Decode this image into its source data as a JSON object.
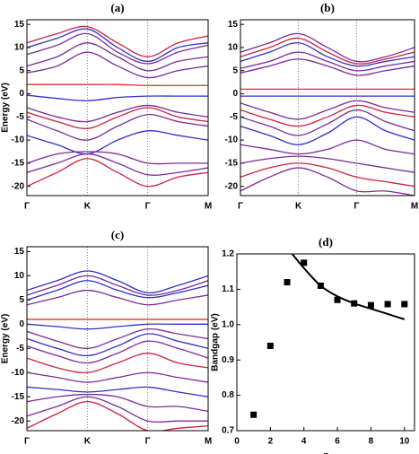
{
  "chart_data": [
    {
      "type": "line",
      "title": "(a)",
      "y_label": "Energy (eV)",
      "x": [
        0,
        0.5,
        1,
        1.5,
        2,
        2.5,
        3
      ],
      "xlim": [
        0,
        3
      ],
      "ylim": [
        -22,
        16
      ],
      "xticks": [
        {
          "value": 0,
          "label": "Γ"
        },
        {
          "value": 1,
          "label": "K"
        },
        {
          "value": 2,
          "label": "Γ"
        },
        {
          "value": 3,
          "label": "M"
        }
      ],
      "yticks": [
        -20,
        -15,
        -10,
        -5,
        0,
        5,
        10,
        15
      ],
      "series": [
        {
          "color": "#d02040",
          "values": [
            11,
            13,
            14.5,
            11,
            8,
            11,
            12.5
          ]
        },
        {
          "color": "#3030c8",
          "values": [
            10,
            12,
            14,
            10,
            7,
            10,
            11
          ]
        },
        {
          "color": "#7a2a9a",
          "values": [
            8.5,
            10.5,
            13,
            9,
            6.5,
            9,
            10.5
          ]
        },
        {
          "color": "#7a2a9a",
          "values": [
            6,
            8,
            11,
            8,
            5,
            7,
            8
          ]
        },
        {
          "color": "#7a2a9a",
          "values": [
            4.5,
            6,
            9,
            6,
            3.5,
            5,
            6
          ]
        },
        {
          "color": "#e03030",
          "values": [
            2,
            2,
            2,
            2,
            1.8,
            1.8,
            1.8
          ]
        },
        {
          "color": "#3030c8",
          "values": [
            -0.3,
            -1,
            -1.5,
            -0.8,
            -0.5,
            -0.5,
            -0.5
          ]
        },
        {
          "color": "#7a2a9a",
          "values": [
            -3,
            -5,
            -6,
            -4,
            -2.5,
            -4,
            -5
          ]
        },
        {
          "color": "#d02040",
          "values": [
            -4,
            -6,
            -7.5,
            -5,
            -3,
            -5,
            -6
          ]
        },
        {
          "color": "#7a2a9a",
          "values": [
            -5.5,
            -8,
            -10,
            -7,
            -4.5,
            -6,
            -7
          ]
        },
        {
          "color": "#3030c8",
          "values": [
            -9,
            -11,
            -13,
            -10,
            -8,
            -9,
            -10
          ]
        },
        {
          "color": "#7a2a9a",
          "values": [
            -15,
            -13,
            -12.5,
            -13,
            -15,
            -15,
            -15
          ]
        },
        {
          "color": "#7a2a9a",
          "values": [
            -17,
            -15,
            -13,
            -15,
            -17.5,
            -17,
            -16
          ]
        },
        {
          "color": "#d02040",
          "values": [
            -20,
            -17,
            -14,
            -17,
            -20,
            -18,
            -17
          ]
        }
      ]
    },
    {
      "type": "line",
      "title": "(b)",
      "x": [
        0,
        0.5,
        1,
        1.5,
        2,
        2.5,
        3
      ],
      "xlim": [
        0,
        3
      ],
      "ylim": [
        -22,
        16
      ],
      "xticks": [
        {
          "value": 0,
          "label": "Γ"
        },
        {
          "value": 1,
          "label": "K"
        },
        {
          "value": 2,
          "label": "Γ"
        },
        {
          "value": 3,
          "label": "M"
        }
      ],
      "yticks": [
        -20,
        -15,
        -10,
        -5,
        0,
        5,
        10,
        15
      ],
      "series": [
        {
          "color": "#7a2a9a",
          "values": [
            9,
            11,
            13,
            10,
            7,
            8,
            10
          ]
        },
        {
          "color": "#d02040",
          "values": [
            8,
            10,
            12,
            9,
            6.5,
            7.5,
            9
          ]
        },
        {
          "color": "#3030c8",
          "values": [
            7,
            9,
            11,
            8,
            6,
            7,
            8
          ]
        },
        {
          "color": "#7a2a9a",
          "values": [
            5.5,
            7,
            9,
            7,
            5,
            6,
            7
          ]
        },
        {
          "color": "#7a2a9a",
          "values": [
            4.5,
            6,
            7.5,
            6,
            4,
            5,
            6
          ]
        },
        {
          "color": "#e03030",
          "values": [
            1,
            1,
            1,
            1,
            1,
            1,
            1
          ]
        },
        {
          "color": "#3030c8",
          "values": [
            -0.5,
            -0.5,
            -0.5,
            -0.5,
            -0.5,
            -0.5,
            -0.5
          ]
        },
        {
          "color": "#7a2a9a",
          "values": [
            -2,
            -4,
            -5.5,
            -3.5,
            -1.5,
            -3,
            -4
          ]
        },
        {
          "color": "#d02040",
          "values": [
            -3.5,
            -5.5,
            -7,
            -5,
            -2.5,
            -4,
            -5
          ]
        },
        {
          "color": "#7a2a9a",
          "values": [
            -5,
            -7,
            -9,
            -6.5,
            -3.5,
            -6,
            -8
          ]
        },
        {
          "color": "#3030c8",
          "values": [
            -7,
            -9,
            -11,
            -8.5,
            -5,
            -8,
            -10
          ]
        },
        {
          "color": "#7a2a9a",
          "values": [
            -11,
            -12,
            -13,
            -12,
            -10,
            -12,
            -13
          ]
        },
        {
          "color": "#7a2a9a",
          "values": [
            -15,
            -14,
            -13.5,
            -14,
            -15,
            -16,
            -17
          ]
        },
        {
          "color": "#d02040",
          "values": [
            -18,
            -16,
            -15,
            -16,
            -18,
            -19,
            -20
          ]
        },
        {
          "color": "#7a2a9a",
          "values": [
            -21,
            -18,
            -16,
            -18,
            -21,
            -21,
            -22
          ]
        }
      ]
    },
    {
      "type": "line",
      "title": "(c)",
      "y_label": "Energy (eV)",
      "x": [
        0,
        0.5,
        1,
        1.5,
        2,
        2.5,
        3
      ],
      "xlim": [
        0,
        3
      ],
      "ylim": [
        -22,
        16
      ],
      "xticks": [
        {
          "value": 0,
          "label": "Γ"
        },
        {
          "value": 1,
          "label": "K"
        },
        {
          "value": 2,
          "label": "Γ"
        },
        {
          "value": 3,
          "label": "M"
        }
      ],
      "yticks": [
        -20,
        -15,
        -10,
        -5,
        0,
        5,
        10,
        15
      ],
      "series": [
        {
          "color": "#3030c8",
          "values": [
            7,
            9,
            11,
            9,
            6.5,
            8,
            10
          ]
        },
        {
          "color": "#7a2a9a",
          "values": [
            6,
            8,
            10,
            8,
            6,
            7,
            9
          ]
        },
        {
          "color": "#3030c8",
          "values": [
            5,
            7,
            9,
            7,
            5.5,
            6.5,
            8
          ]
        },
        {
          "color": "#7a2a9a",
          "values": [
            4,
            5.5,
            7,
            5.5,
            4,
            5,
            6
          ]
        },
        {
          "color": "#e03030",
          "values": [
            1,
            1,
            1,
            1,
            1,
            1,
            1
          ]
        },
        {
          "color": "#3030c8",
          "values": [
            0,
            -0.5,
            -1,
            -0.5,
            0,
            0,
            0
          ]
        },
        {
          "color": "#7a2a9a",
          "values": [
            -1.5,
            -3.5,
            -5,
            -3,
            -1,
            -2,
            -3
          ]
        },
        {
          "color": "#3030c8",
          "values": [
            -3,
            -5,
            -6.5,
            -4.5,
            -2,
            -3.5,
            -5
          ]
        },
        {
          "color": "#7a2a9a",
          "values": [
            -4.5,
            -6.5,
            -8,
            -6,
            -3.5,
            -5,
            -7
          ]
        },
        {
          "color": "#d02040",
          "values": [
            -7,
            -9,
            -10,
            -8,
            -6,
            -8,
            -9
          ]
        },
        {
          "color": "#7a2a9a",
          "values": [
            -10,
            -11,
            -12,
            -11,
            -10,
            -11,
            -12
          ]
        },
        {
          "color": "#3030c8",
          "values": [
            -13,
            -13.5,
            -14,
            -13.5,
            -13,
            -14,
            -15
          ]
        },
        {
          "color": "#7a2a9a",
          "values": [
            -16,
            -15,
            -14.5,
            -15,
            -17,
            -17,
            -18
          ]
        },
        {
          "color": "#7a2a9a",
          "values": [
            -19,
            -17,
            -15,
            -17,
            -20,
            -20,
            -20
          ]
        },
        {
          "color": "#d02040",
          "values": [
            -21.5,
            -18.5,
            -16,
            -18.5,
            -22,
            -21.5,
            -21
          ]
        }
      ]
    },
    {
      "type": "scatter",
      "title": "(d)",
      "y_label": "Bandgap (eV)",
      "x_label": "n",
      "xlim": [
        0,
        10.6
      ],
      "ylim": [
        0.7,
        1.2
      ],
      "xticks": [
        0,
        2,
        4,
        6,
        8,
        10
      ],
      "yticks": [
        0.7,
        0.8,
        0.9,
        {
          "value": 1,
          "label": "1.0"
        },
        1.1,
        1.2
      ],
      "series": [
        {
          "style": "markers",
          "color": "#000000",
          "x": [
            1,
            2,
            3,
            4,
            5,
            6,
            7,
            8,
            9,
            10
          ],
          "values": [
            0.745,
            0.94,
            1.12,
            1.175,
            1.11,
            1.07,
            1.06,
            1.055,
            1.058,
            1.058
          ]
        },
        {
          "style": "line",
          "color": "#000000",
          "x": [
            3.3,
            4,
            5,
            6,
            7,
            8,
            9,
            10
          ],
          "values": [
            1.2,
            1.16,
            1.11,
            1.08,
            1.06,
            1.045,
            1.03,
            1.015
          ]
        }
      ]
    }
  ]
}
